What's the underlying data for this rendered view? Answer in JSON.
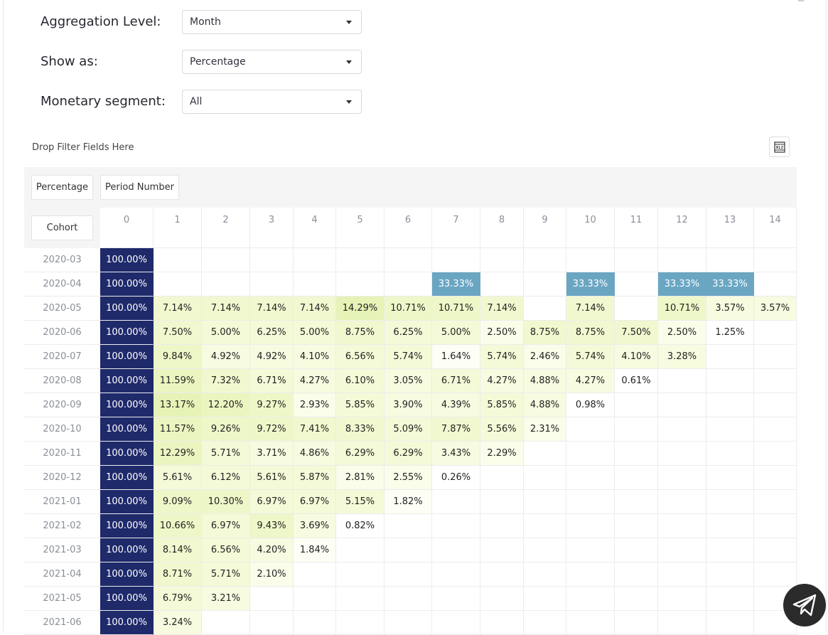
{
  "controls": {
    "aggregation": {
      "label": "Aggregation Level:",
      "value": "Month"
    },
    "show_as": {
      "label": "Show as:",
      "value": "Percentage"
    },
    "monetary": {
      "label": "Monetary segment:",
      "value": "All"
    }
  },
  "pivot": {
    "drop_filter_text": "Drop Filter Fields Here",
    "export_icon": "xlsx-export-icon",
    "measure_chip": "Percentage",
    "column_chip": "Period Number",
    "row_chip": "Cohort",
    "columns": [
      "0",
      "1",
      "2",
      "3",
      "4",
      "5",
      "6",
      "7",
      "8",
      "9",
      "10",
      "11",
      "12",
      "13",
      "14"
    ],
    "rows": [
      {
        "cohort": "2020-03",
        "values": [
          "100.00%",
          "",
          "",
          "",
          "",
          "",
          "",
          "",
          "",
          "",
          "",
          "",
          "",
          "",
          ""
        ]
      },
      {
        "cohort": "2020-04",
        "values": [
          "100.00%",
          "",
          "",
          "",
          "",
          "",
          "",
          "33.33%",
          "",
          "",
          "33.33%",
          "",
          "33.33%",
          "33.33%",
          ""
        ]
      },
      {
        "cohort": "2020-05",
        "values": [
          "100.00%",
          "7.14%",
          "7.14%",
          "7.14%",
          "7.14%",
          "14.29%",
          "10.71%",
          "10.71%",
          "7.14%",
          "",
          "7.14%",
          "",
          "10.71%",
          "3.57%",
          "3.57%"
        ]
      },
      {
        "cohort": "2020-06",
        "values": [
          "100.00%",
          "7.50%",
          "5.00%",
          "6.25%",
          "5.00%",
          "8.75%",
          "6.25%",
          "5.00%",
          "2.50%",
          "8.75%",
          "8.75%",
          "7.50%",
          "2.50%",
          "1.25%",
          ""
        ]
      },
      {
        "cohort": "2020-07",
        "values": [
          "100.00%",
          "9.84%",
          "4.92%",
          "4.92%",
          "4.10%",
          "6.56%",
          "5.74%",
          "1.64%",
          "5.74%",
          "2.46%",
          "5.74%",
          "4.10%",
          "3.28%",
          "",
          ""
        ]
      },
      {
        "cohort": "2020-08",
        "values": [
          "100.00%",
          "11.59%",
          "7.32%",
          "6.71%",
          "4.27%",
          "6.10%",
          "3.05%",
          "6.71%",
          "4.27%",
          "4.88%",
          "4.27%",
          "0.61%",
          "",
          "",
          ""
        ]
      },
      {
        "cohort": "2020-09",
        "values": [
          "100.00%",
          "13.17%",
          "12.20%",
          "9.27%",
          "2.93%",
          "5.85%",
          "3.90%",
          "4.39%",
          "5.85%",
          "4.88%",
          "0.98%",
          "",
          "",
          "",
          ""
        ]
      },
      {
        "cohort": "2020-10",
        "values": [
          "100.00%",
          "11.57%",
          "9.26%",
          "9.72%",
          "7.41%",
          "8.33%",
          "5.09%",
          "7.87%",
          "5.56%",
          "2.31%",
          "",
          "",
          "",
          "",
          ""
        ]
      },
      {
        "cohort": "2020-11",
        "values": [
          "100.00%",
          "12.29%",
          "5.71%",
          "3.71%",
          "4.86%",
          "6.29%",
          "6.29%",
          "3.43%",
          "2.29%",
          "",
          "",
          "",
          "",
          "",
          ""
        ]
      },
      {
        "cohort": "2020-12",
        "values": [
          "100.00%",
          "5.61%",
          "6.12%",
          "5.61%",
          "5.87%",
          "2.81%",
          "2.55%",
          "0.26%",
          "",
          "",
          "",
          "",
          "",
          "",
          ""
        ]
      },
      {
        "cohort": "2021-01",
        "values": [
          "100.00%",
          "9.09%",
          "10.30%",
          "6.97%",
          "6.97%",
          "5.15%",
          "1.82%",
          "",
          "",
          "",
          "",
          "",
          "",
          "",
          ""
        ]
      },
      {
        "cohort": "2021-02",
        "values": [
          "100.00%",
          "10.66%",
          "6.97%",
          "9.43%",
          "3.69%",
          "0.82%",
          "",
          "",
          "",
          "",
          "",
          "",
          "",
          "",
          ""
        ]
      },
      {
        "cohort": "2021-03",
        "values": [
          "100.00%",
          "8.14%",
          "6.56%",
          "4.20%",
          "1.84%",
          "",
          "",
          "",
          "",
          "",
          "",
          "",
          "",
          "",
          ""
        ]
      },
      {
        "cohort": "2021-04",
        "values": [
          "100.00%",
          "8.71%",
          "5.71%",
          "2.10%",
          "",
          "",
          "",
          "",
          "",
          "",
          "",
          "",
          "",
          "",
          ""
        ]
      },
      {
        "cohort": "2021-05",
        "values": [
          "100.00%",
          "6.79%",
          "3.21%",
          "",
          "",
          "",
          "",
          "",
          "",
          "",
          "",
          "",
          "",
          "",
          ""
        ]
      },
      {
        "cohort": "2021-06",
        "values": [
          "100.00%",
          "3.24%",
          "",
          "",
          "",
          "",
          "",
          "",
          "",
          "",
          "",
          "",
          "",
          "",
          ""
        ]
      }
    ]
  },
  "colors": {
    "full": "#1f2a6b",
    "medium_blue": "#6aa6c2",
    "text_light": "#ffffff"
  },
  "fab_icon": "telegram-send-icon"
}
